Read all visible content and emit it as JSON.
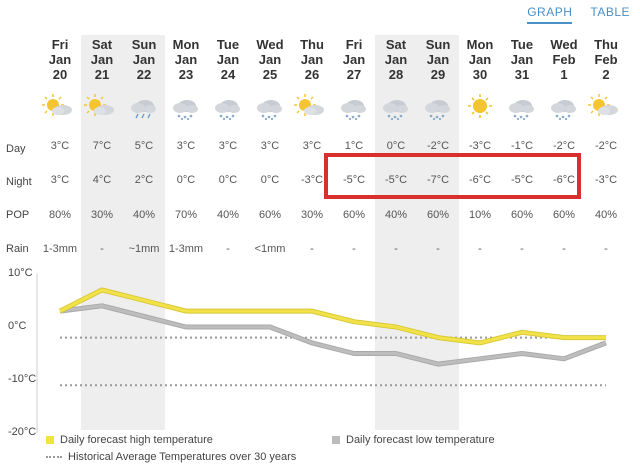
{
  "toggle": {
    "graph": "GRAPH",
    "table": "TABLE",
    "active": "graph"
  },
  "row_labels": {
    "day": "Day",
    "night": "Night",
    "pop": "POP",
    "rain": "Rain"
  },
  "days": [
    {
      "dow": "Fri",
      "mon": "Jan",
      "date": "20",
      "icon": "sun-cloud",
      "day": "3°C",
      "night": "3°C",
      "pop": "80%",
      "rain": "1-3mm"
    },
    {
      "dow": "Sat",
      "mon": "Jan",
      "date": "21",
      "icon": "sun-cloud",
      "day": "7°C",
      "night": "4°C",
      "pop": "30%",
      "rain": "-"
    },
    {
      "dow": "Sun",
      "mon": "Jan",
      "date": "22",
      "icon": "cloud-rain",
      "day": "5°C",
      "night": "2°C",
      "pop": "40%",
      "rain": "~1mm"
    },
    {
      "dow": "Mon",
      "mon": "Jan",
      "date": "23",
      "icon": "cloud-snow",
      "day": "3°C",
      "night": "0°C",
      "pop": "70%",
      "rain": "1-3mm"
    },
    {
      "dow": "Tue",
      "mon": "Jan",
      "date": "24",
      "icon": "cloud-snow",
      "day": "3°C",
      "night": "0°C",
      "pop": "40%",
      "rain": "-"
    },
    {
      "dow": "Wed",
      "mon": "Jan",
      "date": "25",
      "icon": "cloud-snow",
      "day": "3°C",
      "night": "0°C",
      "pop": "60%",
      "rain": "<1mm"
    },
    {
      "dow": "Thu",
      "mon": "Jan",
      "date": "26",
      "icon": "sun-cloud",
      "day": "3°C",
      "night": "-3°C",
      "pop": "30%",
      "rain": "-"
    },
    {
      "dow": "Fri",
      "mon": "Jan",
      "date": "27",
      "icon": "cloud-snow",
      "day": "1°C",
      "night": "-5°C",
      "pop": "60%",
      "rain": "-"
    },
    {
      "dow": "Sat",
      "mon": "Jan",
      "date": "28",
      "icon": "cloud-snow",
      "day": "0°C",
      "night": "-5°C",
      "pop": "40%",
      "rain": "-"
    },
    {
      "dow": "Sun",
      "mon": "Jan",
      "date": "29",
      "icon": "cloud-snow",
      "day": "-2°C",
      "night": "-7°C",
      "pop": "60%",
      "rain": "-"
    },
    {
      "dow": "Mon",
      "mon": "Jan",
      "date": "30",
      "icon": "sun",
      "day": "-3°C",
      "night": "-6°C",
      "pop": "10%",
      "rain": "-"
    },
    {
      "dow": "Tue",
      "mon": "Jan",
      "date": "31",
      "icon": "cloud-snow",
      "day": "-1°C",
      "night": "-5°C",
      "pop": "60%",
      "rain": "-"
    },
    {
      "dow": "Wed",
      "mon": "Feb",
      "date": "1",
      "icon": "cloud-snow",
      "day": "-2°C",
      "night": "-6°C",
      "pop": "60%",
      "rain": "-"
    },
    {
      "dow": "Thu",
      "mon": "Feb",
      "date": "2",
      "icon": "sun-cloud",
      "day": "-2°C",
      "night": "-3°C",
      "pop": "40%",
      "rain": "-"
    }
  ],
  "weekend_indices": [
    1,
    2,
    8,
    9
  ],
  "colors": {
    "high": "#f2e24a",
    "low": "#bdbdbd",
    "average": "#999999",
    "highlight": "#d8302f",
    "weekend": "#eeeeee"
  },
  "chart_data": {
    "type": "line",
    "x": [
      "Fri Jan 20",
      "Sat Jan 21",
      "Sun Jan 22",
      "Mon Jan 23",
      "Tue Jan 24",
      "Wed Jan 25",
      "Thu Jan 26",
      "Fri Jan 27",
      "Sat Jan 28",
      "Sun Jan 29",
      "Mon Jan 30",
      "Tue Jan 31",
      "Wed Feb 1",
      "Thu Feb 2"
    ],
    "series": [
      {
        "name": "Daily forecast high temperature",
        "values": [
          3,
          7,
          5,
          3,
          3,
          3,
          3,
          1,
          0,
          -2,
          -3,
          -1,
          -2,
          -2
        ]
      },
      {
        "name": "Daily forecast low temperature",
        "values": [
          3,
          4,
          2,
          0,
          0,
          0,
          -3,
          -5,
          -5,
          -7,
          -6,
          -5,
          -6,
          -3
        ]
      }
    ],
    "reference_lines": {
      "name": "Historical Average Temperatures over 30 years",
      "values": [
        -2,
        -11
      ]
    },
    "yticks": [
      "10°C",
      "0°C",
      "-10°C",
      "-20°C"
    ],
    "ylim": [
      -20,
      10
    ],
    "grid": false,
    "legend_position": "bottom"
  }
}
